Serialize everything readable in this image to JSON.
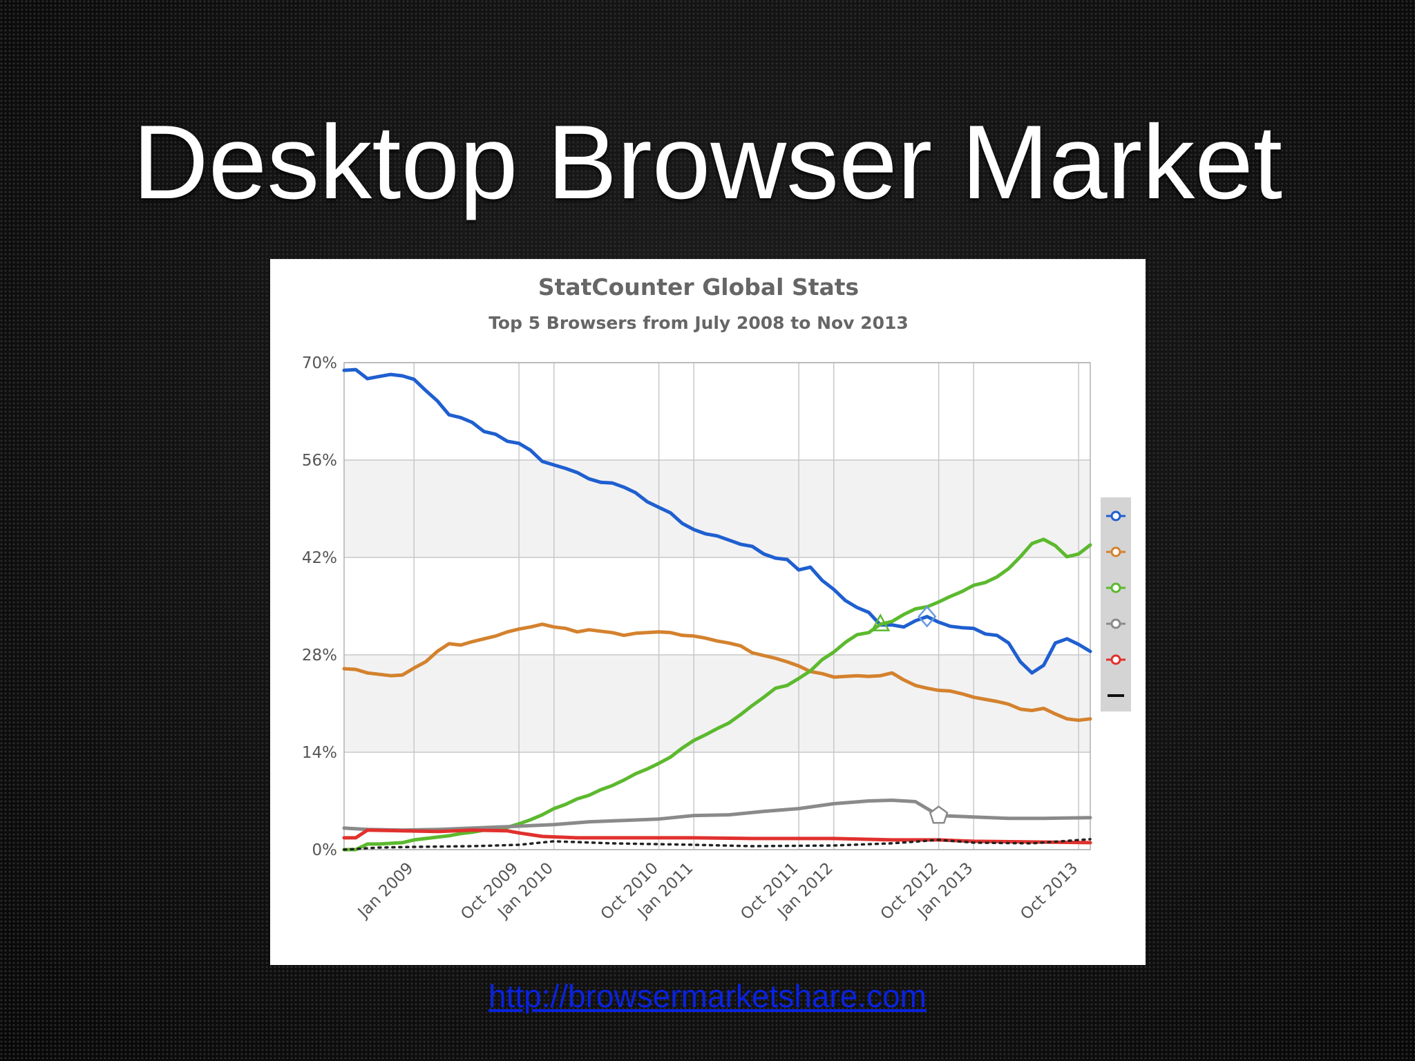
{
  "slide": {
    "title": "Desktop Browser Market",
    "link_text": "http://browsermarketshare.com"
  },
  "chart_data": {
    "type": "line",
    "title": "StatCounter Global Stats",
    "subtitle": "Top 5 Browsers from July 2008 to Nov 2013",
    "xlabel": "",
    "ylabel": "",
    "ylim": [
      0,
      70
    ],
    "yticks": [
      "0%",
      "14%",
      "28%",
      "42%",
      "56%",
      "70%"
    ],
    "xticks": [
      {
        "label": "Jan 2009",
        "x": "2009-01"
      },
      {
        "label": "Oct 2009",
        "x": "2009-10"
      },
      {
        "label": "Jan 2010",
        "x": "2010-01"
      },
      {
        "label": "Oct 2010",
        "x": "2010-10"
      },
      {
        "label": "Jan 2011",
        "x": "2011-01"
      },
      {
        "label": "Oct 2011",
        "x": "2011-10"
      },
      {
        "label": "Jan 2012",
        "x": "2012-01"
      },
      {
        "label": "Oct 2012",
        "x": "2012-10"
      },
      {
        "label": "Jan 2013",
        "x": "2013-01"
      },
      {
        "label": "Oct 2013",
        "x": "2013-10"
      }
    ],
    "xlim": [
      "2008-07",
      "2013-11"
    ],
    "grid": true,
    "legend": "right",
    "series": [
      {
        "color": "#1f5fd0",
        "style": "solid",
        "points": [
          [
            "2008-07",
            68.9
          ],
          [
            "2008-08",
            69.0
          ],
          [
            "2008-09",
            67.7
          ],
          [
            "2008-10",
            68.0
          ],
          [
            "2008-11",
            68.3
          ],
          [
            "2008-12",
            68.1
          ],
          [
            "2009-01",
            67.6
          ],
          [
            "2009-02",
            66.0
          ],
          [
            "2009-03",
            64.5
          ],
          [
            "2009-04",
            62.5
          ],
          [
            "2009-05",
            62.1
          ],
          [
            "2009-06",
            61.4
          ],
          [
            "2009-07",
            60.1
          ],
          [
            "2009-08",
            59.7
          ],
          [
            "2009-09",
            58.7
          ],
          [
            "2009-10",
            58.4
          ],
          [
            "2009-11",
            57.4
          ],
          [
            "2009-12",
            55.8
          ],
          [
            "2010-01",
            55.3
          ],
          [
            "2010-02",
            54.8
          ],
          [
            "2010-03",
            54.2
          ],
          [
            "2010-04",
            53.3
          ],
          [
            "2010-05",
            52.8
          ],
          [
            "2010-06",
            52.7
          ],
          [
            "2010-07",
            52.1
          ],
          [
            "2010-08",
            51.3
          ],
          [
            "2010-09",
            50.0
          ],
          [
            "2010-10",
            49.2
          ],
          [
            "2010-11",
            48.4
          ],
          [
            "2010-12",
            46.9
          ],
          [
            "2011-01",
            46.0
          ],
          [
            "2011-02",
            45.4
          ],
          [
            "2011-03",
            45.1
          ],
          [
            "2011-04",
            44.5
          ],
          [
            "2011-05",
            43.9
          ],
          [
            "2011-06",
            43.6
          ],
          [
            "2011-07",
            42.5
          ],
          [
            "2011-08",
            41.9
          ],
          [
            "2011-09",
            41.7
          ],
          [
            "2011-10",
            40.2
          ],
          [
            "2011-11",
            40.6
          ],
          [
            "2011-12",
            38.7
          ],
          [
            "2012-01",
            37.4
          ],
          [
            "2012-02",
            35.8
          ],
          [
            "2012-03",
            34.8
          ],
          [
            "2012-04",
            34.1
          ],
          [
            "2012-05",
            32.3
          ],
          [
            "2012-06",
            32.3
          ],
          [
            "2012-07",
            32.0
          ],
          [
            "2012-08",
            32.9
          ],
          [
            "2012-09",
            33.5
          ],
          [
            "2012-10",
            32.7
          ],
          [
            "2012-11",
            32.1
          ],
          [
            "2012-12",
            31.9
          ],
          [
            "2013-01",
            31.8
          ],
          [
            "2013-02",
            31.0
          ],
          [
            "2013-03",
            30.8
          ],
          [
            "2013-04",
            29.7
          ],
          [
            "2013-05",
            27.0
          ],
          [
            "2013-06",
            25.4
          ],
          [
            "2013-07",
            26.5
          ],
          [
            "2013-08",
            29.7
          ],
          [
            "2013-09",
            30.3
          ],
          [
            "2013-10",
            29.5
          ],
          [
            "2013-11",
            28.5
          ]
        ]
      },
      {
        "color": "#d4822e",
        "style": "solid",
        "points": [
          [
            "2008-07",
            26.0
          ],
          [
            "2008-08",
            25.9
          ],
          [
            "2008-09",
            25.4
          ],
          [
            "2008-10",
            25.2
          ],
          [
            "2008-11",
            25.0
          ],
          [
            "2008-12",
            25.1
          ],
          [
            "2009-01",
            26.1
          ],
          [
            "2009-02",
            27.0
          ],
          [
            "2009-03",
            28.5
          ],
          [
            "2009-04",
            29.6
          ],
          [
            "2009-05",
            29.4
          ],
          [
            "2009-06",
            29.9
          ],
          [
            "2009-07",
            30.3
          ],
          [
            "2009-08",
            30.7
          ],
          [
            "2009-09",
            31.3
          ],
          [
            "2009-10",
            31.7
          ],
          [
            "2009-11",
            32.0
          ],
          [
            "2009-12",
            32.4
          ],
          [
            "2010-01",
            32.0
          ],
          [
            "2010-02",
            31.8
          ],
          [
            "2010-03",
            31.3
          ],
          [
            "2010-04",
            31.6
          ],
          [
            "2010-05",
            31.4
          ],
          [
            "2010-06",
            31.2
          ],
          [
            "2010-07",
            30.8
          ],
          [
            "2010-08",
            31.1
          ],
          [
            "2010-09",
            31.2
          ],
          [
            "2010-10",
            31.3
          ],
          [
            "2010-11",
            31.2
          ],
          [
            "2010-12",
            30.8
          ],
          [
            "2011-01",
            30.7
          ],
          [
            "2011-02",
            30.4
          ],
          [
            "2011-03",
            30.0
          ],
          [
            "2011-04",
            29.7
          ],
          [
            "2011-05",
            29.3
          ],
          [
            "2011-06",
            28.3
          ],
          [
            "2011-07",
            27.9
          ],
          [
            "2011-08",
            27.5
          ],
          [
            "2011-09",
            27.0
          ],
          [
            "2011-10",
            26.4
          ],
          [
            "2011-11",
            25.6
          ],
          [
            "2011-12",
            25.3
          ],
          [
            "2012-01",
            24.8
          ],
          [
            "2012-02",
            24.9
          ],
          [
            "2012-03",
            25.0
          ],
          [
            "2012-04",
            24.9
          ],
          [
            "2012-05",
            25.0
          ],
          [
            "2012-06",
            25.4
          ],
          [
            "2012-07",
            24.4
          ],
          [
            "2012-08",
            23.6
          ],
          [
            "2012-09",
            23.2
          ],
          [
            "2012-10",
            22.9
          ],
          [
            "2012-11",
            22.8
          ],
          [
            "2012-12",
            22.4
          ],
          [
            "2013-01",
            21.9
          ],
          [
            "2013-02",
            21.6
          ],
          [
            "2013-03",
            21.3
          ],
          [
            "2013-04",
            20.9
          ],
          [
            "2013-05",
            20.2
          ],
          [
            "2013-06",
            20.0
          ],
          [
            "2013-07",
            20.3
          ],
          [
            "2013-08",
            19.5
          ],
          [
            "2013-09",
            18.8
          ],
          [
            "2013-10",
            18.6
          ],
          [
            "2013-11",
            18.8
          ]
        ]
      },
      {
        "color": "#5cb92e",
        "style": "solid",
        "points": [
          [
            "2008-07",
            0.0
          ],
          [
            "2008-08",
            0.0
          ],
          [
            "2008-09",
            0.8
          ],
          [
            "2008-10",
            0.8
          ],
          [
            "2008-11",
            0.9
          ],
          [
            "2008-12",
            1.0
          ],
          [
            "2009-01",
            1.4
          ],
          [
            "2009-02",
            1.6
          ],
          [
            "2009-03",
            1.8
          ],
          [
            "2009-04",
            2.0
          ],
          [
            "2009-05",
            2.3
          ],
          [
            "2009-06",
            2.5
          ],
          [
            "2009-07",
            2.8
          ],
          [
            "2009-08",
            3.0
          ],
          [
            "2009-09",
            3.2
          ],
          [
            "2009-10",
            3.7
          ],
          [
            "2009-11",
            4.3
          ],
          [
            "2009-12",
            5.0
          ],
          [
            "2010-01",
            5.9
          ],
          [
            "2010-02",
            6.5
          ],
          [
            "2010-03",
            7.3
          ],
          [
            "2010-04",
            7.8
          ],
          [
            "2010-05",
            8.6
          ],
          [
            "2010-06",
            9.2
          ],
          [
            "2010-07",
            10.0
          ],
          [
            "2010-08",
            10.9
          ],
          [
            "2010-09",
            11.6
          ],
          [
            "2010-10",
            12.4
          ],
          [
            "2010-11",
            13.3
          ],
          [
            "2010-12",
            14.6
          ],
          [
            "2011-01",
            15.7
          ],
          [
            "2011-02",
            16.5
          ],
          [
            "2011-03",
            17.4
          ],
          [
            "2011-04",
            18.2
          ],
          [
            "2011-05",
            19.4
          ],
          [
            "2011-06",
            20.7
          ],
          [
            "2011-07",
            21.9
          ],
          [
            "2011-08",
            23.2
          ],
          [
            "2011-09",
            23.6
          ],
          [
            "2011-10",
            24.6
          ],
          [
            "2011-11",
            25.7
          ],
          [
            "2011-12",
            27.3
          ],
          [
            "2012-01",
            28.4
          ],
          [
            "2012-02",
            29.8
          ],
          [
            "2012-03",
            30.9
          ],
          [
            "2012-04",
            31.2
          ],
          [
            "2012-05",
            32.4
          ],
          [
            "2012-06",
            32.8
          ],
          [
            "2012-07",
            33.8
          ],
          [
            "2012-08",
            34.6
          ],
          [
            "2012-09",
            34.9
          ],
          [
            "2012-10",
            35.6
          ],
          [
            "2012-11",
            36.4
          ],
          [
            "2012-12",
            37.1
          ],
          [
            "2013-01",
            38.0
          ],
          [
            "2013-02",
            38.4
          ],
          [
            "2013-03",
            39.2
          ],
          [
            "2013-04",
            40.4
          ],
          [
            "2013-05",
            42.1
          ],
          [
            "2013-06",
            44.0
          ],
          [
            "2013-07",
            44.6
          ],
          [
            "2013-08",
            43.7
          ],
          [
            "2013-09",
            42.1
          ],
          [
            "2013-10",
            42.5
          ],
          [
            "2013-11",
            43.8
          ]
        ]
      },
      {
        "color": "#8a8a8a",
        "style": "solid",
        "points": [
          [
            "2008-07",
            3.1
          ],
          [
            "2008-09",
            2.9
          ],
          [
            "2008-12",
            2.8
          ],
          [
            "2009-03",
            2.9
          ],
          [
            "2009-06",
            3.1
          ],
          [
            "2009-09",
            3.3
          ],
          [
            "2010-01",
            3.6
          ],
          [
            "2010-04",
            4.0
          ],
          [
            "2010-07",
            4.2
          ],
          [
            "2010-10",
            4.4
          ],
          [
            "2011-01",
            4.9
          ],
          [
            "2011-04",
            5.0
          ],
          [
            "2011-07",
            5.5
          ],
          [
            "2011-10",
            5.9
          ],
          [
            "2012-01",
            6.6
          ],
          [
            "2012-04",
            7.0
          ],
          [
            "2012-06",
            7.1
          ],
          [
            "2012-08",
            6.9
          ],
          [
            "2012-10",
            4.9
          ],
          [
            "2013-01",
            4.7
          ],
          [
            "2013-04",
            4.5
          ],
          [
            "2013-07",
            4.5
          ],
          [
            "2013-11",
            4.6
          ]
        ]
      },
      {
        "color": "#e0312e",
        "style": "solid",
        "points": [
          [
            "2008-07",
            1.7
          ],
          [
            "2008-08",
            1.7
          ],
          [
            "2008-09",
            2.8
          ],
          [
            "2008-12",
            2.7
          ],
          [
            "2009-03",
            2.6
          ],
          [
            "2009-06",
            2.8
          ],
          [
            "2009-09",
            2.7
          ],
          [
            "2009-10",
            2.4
          ],
          [
            "2009-12",
            1.9
          ],
          [
            "2010-03",
            1.7
          ],
          [
            "2010-09",
            1.7
          ],
          [
            "2011-01",
            1.7
          ],
          [
            "2011-06",
            1.6
          ],
          [
            "2012-01",
            1.6
          ],
          [
            "2012-06",
            1.4
          ],
          [
            "2012-10",
            1.4
          ],
          [
            "2013-01",
            1.2
          ],
          [
            "2013-06",
            1.1
          ],
          [
            "2013-11",
            1.0
          ]
        ]
      },
      {
        "color": "#222222",
        "style": "dotted",
        "points": [
          [
            "2008-07",
            0.0
          ],
          [
            "2008-10",
            0.3
          ],
          [
            "2009-01",
            0.4
          ],
          [
            "2009-06",
            0.5
          ],
          [
            "2009-10",
            0.7
          ],
          [
            "2010-01",
            1.2
          ],
          [
            "2010-06",
            0.9
          ],
          [
            "2011-01",
            0.7
          ],
          [
            "2011-06",
            0.5
          ],
          [
            "2012-01",
            0.6
          ],
          [
            "2012-06",
            0.9
          ],
          [
            "2012-10",
            1.4
          ],
          [
            "2013-01",
            1.0
          ],
          [
            "2013-06",
            0.9
          ],
          [
            "2013-11",
            1.5
          ]
        ]
      }
    ]
  }
}
